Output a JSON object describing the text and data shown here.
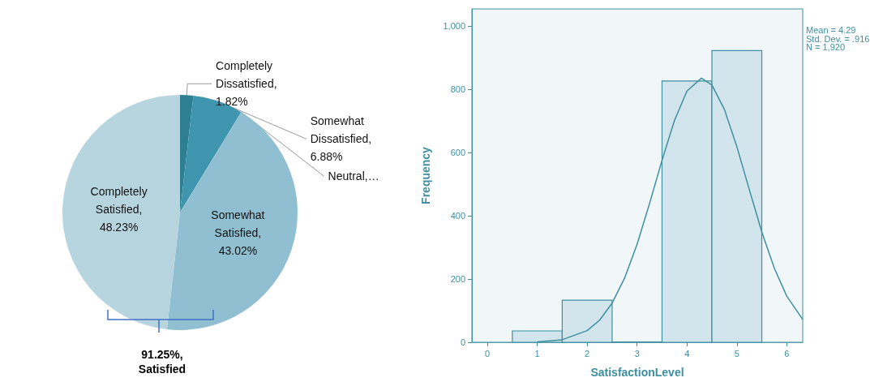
{
  "chart_data": [
    {
      "type": "pie",
      "categories": [
        null,
        null,
        null,
        null,
        null
      ],
      "values": [
        1.82,
        6.88,
        0.05,
        43.02,
        48.23
      ],
      "colors": [
        "#2f7f93",
        "#3f95ad",
        "#5aa6bb",
        "#8fbfd1",
        "#b7d5df"
      ],
      "value_labels": [
        "Completely Dissatisfied, 1.82%",
        "Somewhat Dissatisfied, 6.88%",
        "Neutral,…",
        "Somewhat Satisfied, 43.02%",
        "Completely Satisfied, 48.23%"
      ],
      "annotations": [
        "91.25%, Satisfied"
      ]
    },
    {
      "type": "histogram",
      "bins": [
        0.5,
        1.5,
        2.5,
        3.5,
        4.5,
        5.5
      ],
      "values": [
        36,
        133,
        1,
        827,
        923
      ],
      "color": "#d3e5ec",
      "series": [
        {
          "type": "line",
          "color": "#3f8fa0",
          "x": [
            1,
            1.5,
            2,
            2.25,
            2.5,
            2.75,
            3,
            3.25,
            3.5,
            3.75,
            4,
            4.29,
            4.5,
            4.75,
            5,
            5.25,
            5.5,
            5.75,
            6,
            6.32
          ],
          "values": [
            1,
            8,
            37,
            70,
            124,
            203,
            310,
            439,
            576,
            702,
            795,
            836,
            814,
            737,
            619,
            483,
            349,
            235,
            146,
            72
          ]
        }
      ],
      "xlabel": "SatisfactionLevel",
      "ylabel": "Frequency",
      "xlim": [
        -0.31,
        6.32
      ],
      "ylim": [
        0,
        1055
      ],
      "xticks": [
        0,
        1,
        2,
        3,
        4,
        5,
        6
      ],
      "yticks": [
        0,
        200,
        400,
        600,
        800,
        {
          "value": 1000,
          "label": "1,000"
        }
      ],
      "annotations": [
        "Mean = 4.29",
        "Std. Dev. = .916",
        "N = 1,920"
      ],
      "grid": false,
      "marker": "none"
    }
  ]
}
